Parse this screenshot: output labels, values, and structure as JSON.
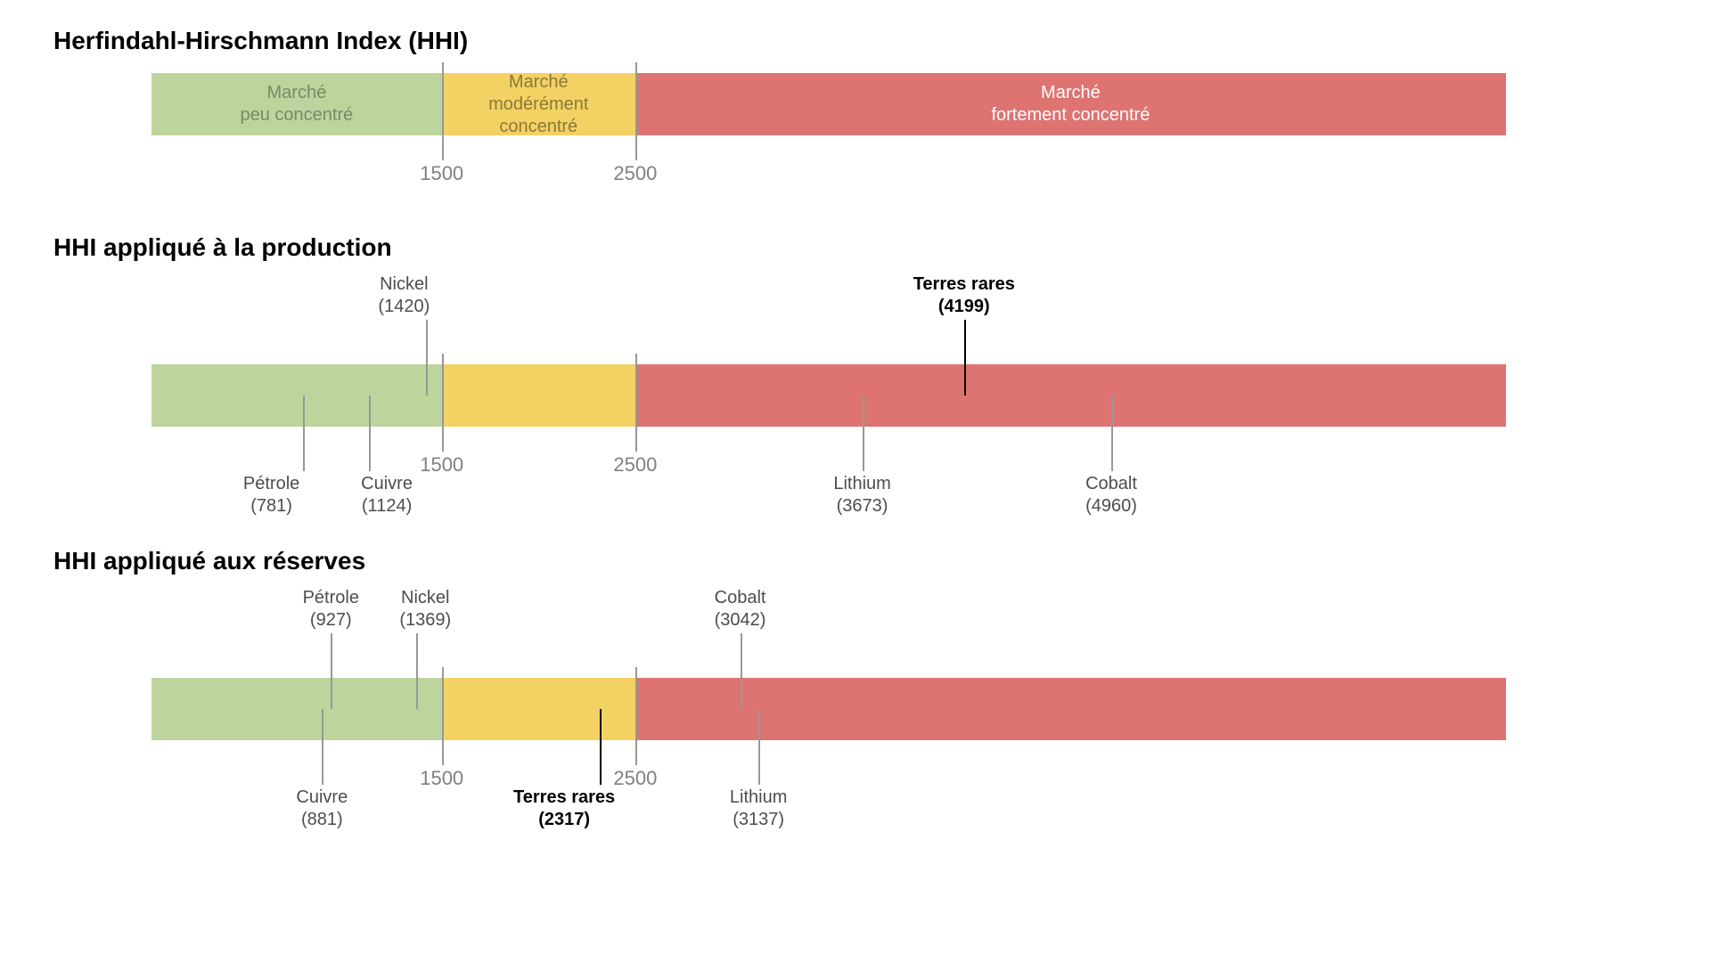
{
  "scale": {
    "min": 0,
    "max": 7000
  },
  "zones": [
    {
      "start": 0,
      "end": 1500,
      "color": "#bdd49c",
      "label": "Marché\npeu concentré",
      "text_color": "#7a8a6a"
    },
    {
      "start": 1500,
      "end": 2500,
      "color": "#f3d163",
      "label": "Marché\nmodérément\nconcentré",
      "text_color": "#8a7a3a"
    },
    {
      "start": 2500,
      "end": 7000,
      "color": "#dd7471",
      "label": "Marché\nfortement concentré",
      "text_color": "#ffffff"
    }
  ],
  "ticks": [
    {
      "value": 1500,
      "label": "1500"
    },
    {
      "value": 2500,
      "label": "2500"
    }
  ],
  "tick_color": "#989898",
  "tick_label_color": "#808080",
  "marker_color_normal": "#989898",
  "marker_color_highlight": "#000000",
  "marker_label_color": "#4d4d4d",
  "sections": [
    {
      "title": "Herfindahl-Hirschmann Index (HHI)",
      "show_zone_labels": true,
      "show_ticks": true,
      "top_area": 0,
      "bottom_area": 70,
      "markers": []
    },
    {
      "title": "HHI appliqué à la production",
      "show_zone_labels": false,
      "show_ticks": true,
      "top_area": 95,
      "bottom_area": 95,
      "markers": [
        {
          "name": "Pétrole",
          "value": 781,
          "pos": "bottom",
          "highlight": false,
          "label_shift": -35
        },
        {
          "name": "Cuivre",
          "value": 1124,
          "pos": "bottom",
          "highlight": false,
          "label_shift": 20
        },
        {
          "name": "Nickel",
          "value": 1420,
          "pos": "top",
          "highlight": false,
          "label_shift": -25
        },
        {
          "name": "Lithium",
          "value": 3673,
          "pos": "bottom",
          "highlight": false,
          "label_shift": 0
        },
        {
          "name": "Terres rares",
          "value": 4199,
          "pos": "top",
          "highlight": true,
          "label_shift": 0
        },
        {
          "name": "Cobalt",
          "value": 4960,
          "pos": "bottom",
          "highlight": false,
          "label_shift": 0
        }
      ]
    },
    {
      "title": "HHI appliqué aux réserves",
      "show_zone_labels": false,
      "show_ticks": true,
      "top_area": 95,
      "bottom_area": 95,
      "markers": [
        {
          "name": "Cuivre",
          "value": 881,
          "pos": "bottom",
          "highlight": false,
          "label_shift": 0
        },
        {
          "name": "Pétrole",
          "value": 927,
          "pos": "top",
          "highlight": false,
          "label_shift": 0
        },
        {
          "name": "Nickel",
          "value": 1369,
          "pos": "top",
          "highlight": false,
          "label_shift": 10
        },
        {
          "name": "Terres rares",
          "value": 2317,
          "pos": "bottom",
          "highlight": true,
          "label_shift": -40
        },
        {
          "name": "Cobalt",
          "value": 3042,
          "pos": "top",
          "highlight": false,
          "label_shift": 0
        },
        {
          "name": "Lithium",
          "value": 3137,
          "pos": "bottom",
          "highlight": false,
          "label_shift": 0
        }
      ]
    }
  ]
}
